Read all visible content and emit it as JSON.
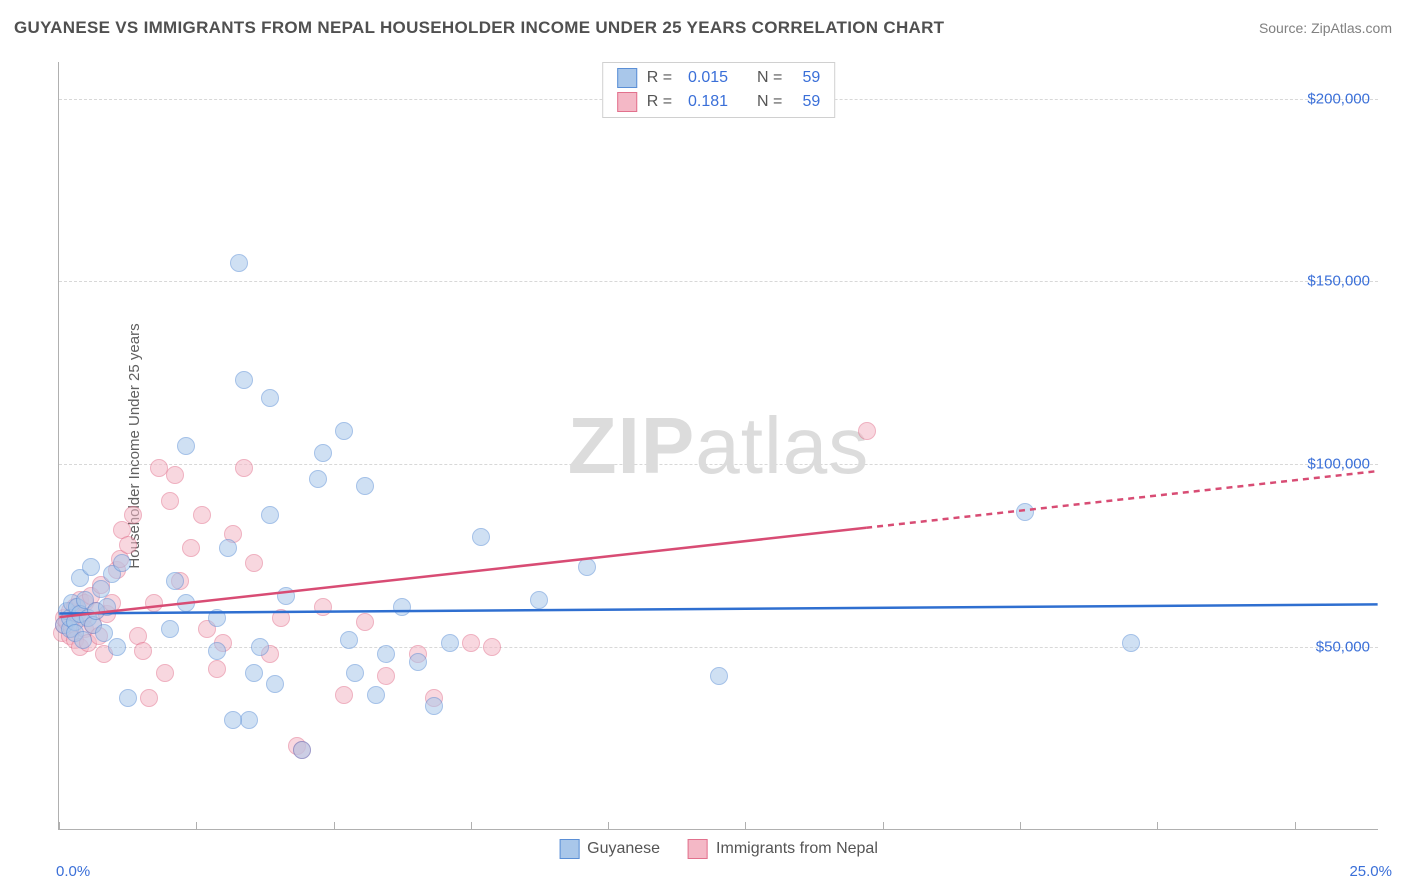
{
  "title": "GUYANESE VS IMMIGRANTS FROM NEPAL HOUSEHOLDER INCOME UNDER 25 YEARS CORRELATION CHART",
  "source_label": "Source:",
  "source_site": "ZipAtlas.com",
  "watermark": "ZIPatlas",
  "chart": {
    "type": "scatter",
    "xlim": [
      0,
      25
    ],
    "ylim": [
      0,
      210000
    ],
    "x_tick_positions": [
      0,
      2.6,
      5.2,
      7.8,
      10.4,
      13.0,
      15.6,
      18.2,
      20.8,
      23.4
    ],
    "x_tick_labels_shown": {
      "0": "0.0%",
      "25": "25.0%"
    },
    "y_gridlines": [
      50000,
      100000,
      150000,
      200000
    ],
    "y_tick_labels": {
      "50000": "$50,000",
      "100000": "$100,000",
      "150000": "$150,000",
      "200000": "$200,000"
    },
    "y_axis_label": "Householder Income Under 25 years",
    "background_color": "#ffffff",
    "grid_color": "#d8d8d8",
    "axis_color": "#b0b0b0",
    "tick_label_color": "#3a6fd8",
    "marker_radius": 9,
    "marker_opacity": 0.55,
    "series": {
      "a": {
        "name": "Guyanese",
        "fill": "#a9c7ea",
        "stroke": "#5b8fd6",
        "trend_color": "#2f6fd0",
        "trend_y_start": 59000,
        "trend_y_end": 61500,
        "trend_solid_to_x": 25,
        "r": "0.015",
        "n": "59",
        "points": [
          [
            0.1,
            56000
          ],
          [
            0.15,
            60000
          ],
          [
            0.2,
            55000
          ],
          [
            0.2,
            58000
          ],
          [
            0.25,
            62000
          ],
          [
            0.3,
            57000
          ],
          [
            0.3,
            54000
          ],
          [
            0.35,
            61000
          ],
          [
            0.4,
            59000
          ],
          [
            0.4,
            69000
          ],
          [
            0.45,
            52000
          ],
          [
            0.5,
            63000
          ],
          [
            0.55,
            58000
          ],
          [
            0.6,
            72000
          ],
          [
            0.65,
            56000
          ],
          [
            0.7,
            60000
          ],
          [
            0.8,
            66000
          ],
          [
            0.85,
            54000
          ],
          [
            0.9,
            61000
          ],
          [
            1.0,
            70000
          ],
          [
            1.1,
            50000
          ],
          [
            1.2,
            73000
          ],
          [
            1.3,
            36000
          ],
          [
            2.1,
            55000
          ],
          [
            2.2,
            68000
          ],
          [
            2.4,
            105000
          ],
          [
            2.4,
            62000
          ],
          [
            3.0,
            49000
          ],
          [
            3.0,
            58000
          ],
          [
            3.2,
            77000
          ],
          [
            3.4,
            155000
          ],
          [
            3.5,
            123000
          ],
          [
            3.6,
            30000
          ],
          [
            3.7,
            43000
          ],
          [
            3.8,
            50000
          ],
          [
            4.0,
            86000
          ],
          [
            4.0,
            118000
          ],
          [
            4.1,
            40000
          ],
          [
            4.3,
            64000
          ],
          [
            4.6,
            22000
          ],
          [
            4.9,
            96000
          ],
          [
            5.0,
            103000
          ],
          [
            5.4,
            109000
          ],
          [
            5.5,
            52000
          ],
          [
            5.6,
            43000
          ],
          [
            5.8,
            94000
          ],
          [
            6.0,
            37000
          ],
          [
            6.2,
            48000
          ],
          [
            6.5,
            61000
          ],
          [
            6.8,
            46000
          ],
          [
            7.1,
            34000
          ],
          [
            7.4,
            51000
          ],
          [
            8.0,
            80000
          ],
          [
            9.1,
            63000
          ],
          [
            10.0,
            72000
          ],
          [
            12.5,
            42000
          ],
          [
            18.3,
            87000
          ],
          [
            20.3,
            51000
          ],
          [
            3.3,
            30000
          ]
        ]
      },
      "b": {
        "name": "Immigrants from Nepal",
        "fill": "#f4b8c6",
        "stroke": "#e2718d",
        "trend_color": "#d84c74",
        "trend_y_start": 58000,
        "trend_y_end": 98000,
        "trend_solid_to_x": 15.3,
        "r": "0.181",
        "n": "59",
        "points": [
          [
            0.05,
            54000
          ],
          [
            0.1,
            56000
          ],
          [
            0.1,
            58000
          ],
          [
            0.15,
            57000
          ],
          [
            0.2,
            60000
          ],
          [
            0.2,
            53000
          ],
          [
            0.25,
            55000
          ],
          [
            0.3,
            52000
          ],
          [
            0.3,
            61000
          ],
          [
            0.35,
            59000
          ],
          [
            0.4,
            63000
          ],
          [
            0.4,
            50000
          ],
          [
            0.45,
            58000
          ],
          [
            0.5,
            62000
          ],
          [
            0.5,
            55000
          ],
          [
            0.55,
            51000
          ],
          [
            0.6,
            64000
          ],
          [
            0.65,
            56000
          ],
          [
            0.7,
            60000
          ],
          [
            0.75,
            53000
          ],
          [
            0.8,
            67000
          ],
          [
            0.85,
            48000
          ],
          [
            0.9,
            59000
          ],
          [
            1.0,
            62000
          ],
          [
            1.1,
            71000
          ],
          [
            1.15,
            74000
          ],
          [
            1.2,
            82000
          ],
          [
            1.3,
            78000
          ],
          [
            1.4,
            86000
          ],
          [
            1.5,
            53000
          ],
          [
            1.6,
            49000
          ],
          [
            1.7,
            36000
          ],
          [
            1.8,
            62000
          ],
          [
            1.9,
            99000
          ],
          [
            2.0,
            43000
          ],
          [
            2.1,
            90000
          ],
          [
            2.2,
            97000
          ],
          [
            2.3,
            68000
          ],
          [
            2.5,
            77000
          ],
          [
            2.7,
            86000
          ],
          [
            2.8,
            55000
          ],
          [
            3.0,
            44000
          ],
          [
            3.1,
            51000
          ],
          [
            3.3,
            81000
          ],
          [
            3.5,
            99000
          ],
          [
            3.7,
            73000
          ],
          [
            4.0,
            48000
          ],
          [
            4.2,
            58000
          ],
          [
            4.5,
            23000
          ],
          [
            4.6,
            22000
          ],
          [
            5.0,
            61000
          ],
          [
            5.4,
            37000
          ],
          [
            5.8,
            57000
          ],
          [
            6.2,
            42000
          ],
          [
            6.8,
            48000
          ],
          [
            7.1,
            36000
          ],
          [
            7.8,
            51000
          ],
          [
            8.2,
            50000
          ],
          [
            15.3,
            109000
          ]
        ]
      }
    },
    "legend_top": [
      {
        "series": "a",
        "r_label": "R =",
        "n_label": "N ="
      },
      {
        "series": "b",
        "r_label": "R =",
        "n_label": "N ="
      }
    ]
  }
}
